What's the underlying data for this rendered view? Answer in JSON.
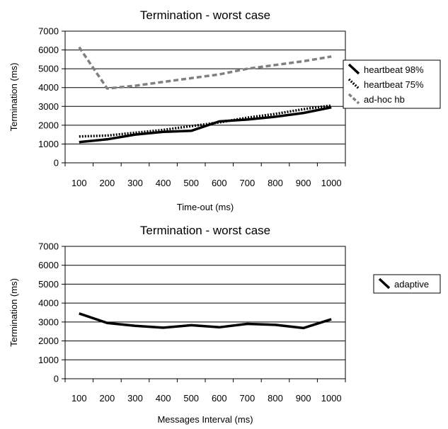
{
  "chart_data": [
    {
      "type": "line",
      "title": "Termination - worst case",
      "xlabel": "Time-out (ms)",
      "ylabel": "Termination (ms)",
      "x": [
        100,
        200,
        300,
        400,
        500,
        600,
        700,
        800,
        900,
        1000
      ],
      "ylim": [
        0,
        7000
      ],
      "yticks": [
        0,
        1000,
        2000,
        3000,
        4000,
        5000,
        6000,
        7000
      ],
      "grid": true,
      "legend": "right",
      "series": [
        {
          "name": "heartbeat 98%",
          "color": "#000000",
          "dash": "solid",
          "values": [
            1100,
            1250,
            1500,
            1650,
            1700,
            2200,
            2300,
            2450,
            2650,
            2950
          ]
        },
        {
          "name": "heartbeat 75%",
          "color": "#000000",
          "dash": "dotted",
          "values": [
            1400,
            1450,
            1600,
            1750,
            1950,
            2150,
            2400,
            2600,
            2850,
            3050
          ]
        },
        {
          "name": "ad-hoc hb",
          "color": "#808080",
          "dash": "dashed",
          "values": [
            6150,
            3950,
            4100,
            4300,
            4500,
            4700,
            5000,
            5200,
            5400,
            5650
          ]
        }
      ]
    },
    {
      "type": "line",
      "title": "Termination - worst case",
      "xlabel": "Messages Interval (ms)",
      "ylabel": "Termination (ms)",
      "x": [
        100,
        200,
        300,
        400,
        500,
        600,
        700,
        800,
        900,
        1000
      ],
      "ylim": [
        0,
        7000
      ],
      "yticks": [
        0,
        1000,
        2000,
        3000,
        4000,
        5000,
        6000,
        7000
      ],
      "grid": true,
      "legend": "right",
      "series": [
        {
          "name": "adaptive",
          "color": "#000000",
          "dash": "solid",
          "values": [
            3450,
            2950,
            2800,
            2700,
            2830,
            2720,
            2900,
            2850,
            2680,
            3150
          ]
        }
      ]
    }
  ]
}
